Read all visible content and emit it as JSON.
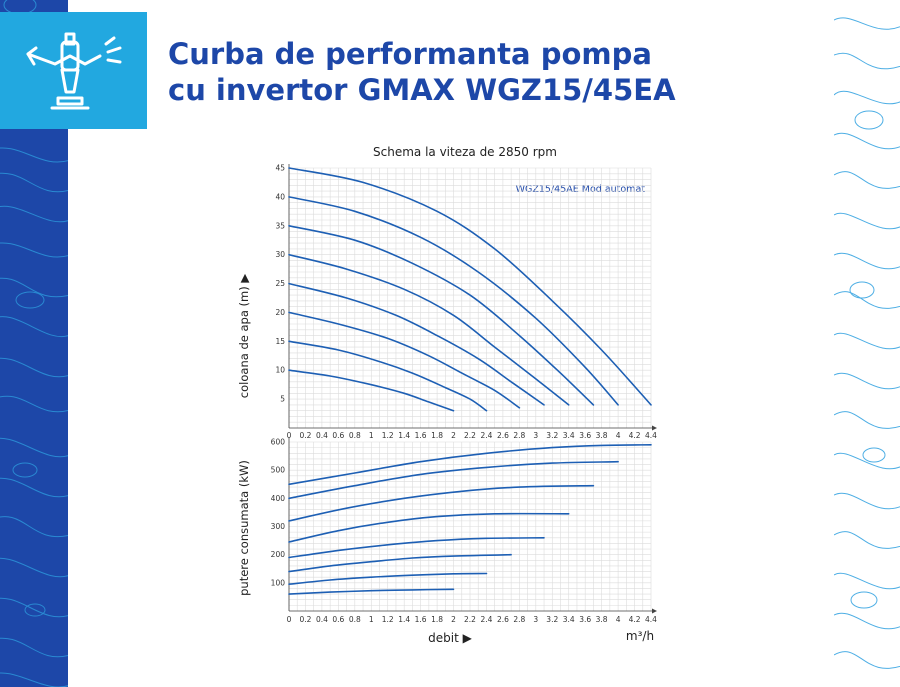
{
  "header": {
    "title_line1": "Curba de performanta pompa",
    "title_line2": "cu invertor GMAX WGZ15/45EA"
  },
  "icon": {
    "name": "sprinkler-icon"
  },
  "colors": {
    "brand": "#1d47a8",
    "accent": "#22a8e0",
    "curve": "#1d5fb4"
  },
  "chart_data": [
    {
      "type": "line",
      "title": "Schema la viteza de 2850 rpm",
      "legend": "WGZ15/45AE Mod automat",
      "xlabel": "",
      "ylabel": "coloana de apa (m) ▶",
      "x_ticks": [
        "0",
        "0.2",
        "0.4",
        "0.6",
        "0.8",
        "1",
        "1.2",
        "1.4",
        "1.6",
        "1.8",
        "2",
        "2.2",
        "2.4",
        "2.6",
        "2.8",
        "3",
        "3.2",
        "3.4",
        "3.6",
        "3.8",
        "4",
        "4.2",
        "4.4"
      ],
      "y_ticks": [
        "5",
        "10",
        "15",
        "20",
        "25",
        "30",
        "35",
        "40",
        "45"
      ],
      "xlim": [
        0,
        4.4
      ],
      "ylim": [
        0,
        45
      ],
      "grid": true,
      "series": [
        {
          "x": [
            0,
            0.9,
            1.8,
            2.5,
            3.2,
            3.8,
            4.4
          ],
          "y": [
            45,
            42.5,
            37.5,
            31,
            22,
            13.5,
            4
          ]
        },
        {
          "x": [
            0,
            0.8,
            1.6,
            2.3,
            3.0,
            3.6,
            4.0
          ],
          "y": [
            40,
            37.5,
            33,
            27,
            19,
            10.5,
            4
          ]
        },
        {
          "x": [
            0,
            0.8,
            1.5,
            2.2,
            2.8,
            3.3,
            3.7
          ],
          "y": [
            35,
            32.5,
            28.5,
            23,
            16,
            9.5,
            4
          ]
        },
        {
          "x": [
            0,
            0.7,
            1.4,
            2.0,
            2.5,
            3.0,
            3.4
          ],
          "y": [
            30,
            27.5,
            24,
            19.5,
            14,
            8.5,
            4
          ]
        },
        {
          "x": [
            0,
            0.7,
            1.3,
            1.8,
            2.3,
            2.7,
            3.1
          ],
          "y": [
            25,
            22.5,
            19.5,
            16,
            12,
            8,
            4
          ]
        },
        {
          "x": [
            0,
            0.6,
            1.2,
            1.7,
            2.1,
            2.5,
            2.8
          ],
          "y": [
            20,
            18,
            15.5,
            12.5,
            9.5,
            6.5,
            3.5
          ]
        },
        {
          "x": [
            0,
            0.6,
            1.1,
            1.5,
            1.9,
            2.2,
            2.4
          ],
          "y": [
            15,
            13.5,
            11.5,
            9.5,
            7,
            5,
            3
          ]
        },
        {
          "x": [
            0,
            0.5,
            1.0,
            1.4,
            1.7,
            2.0
          ],
          "y": [
            10,
            9,
            7.5,
            6,
            4.5,
            3
          ]
        }
      ]
    },
    {
      "type": "line",
      "title": "",
      "xlabel": "debit ▶",
      "xunit": "m³/h",
      "ylabel": "putere consumata (kW)",
      "x_ticks": [
        "0",
        "0.2",
        "0.4",
        "0.6",
        "0.8",
        "1",
        "1.2",
        "1.4",
        "1.6",
        "1.8",
        "2",
        "2.2",
        "2.4",
        "2.6",
        "2.8",
        "3",
        "3.2",
        "3.4",
        "3.6",
        "3.8",
        "4",
        "4.2",
        "4.4"
      ],
      "y_ticks": [
        "100",
        "200",
        "300",
        "400",
        "500",
        "600"
      ],
      "xlim": [
        0,
        4.4
      ],
      "ylim": [
        0,
        600
      ],
      "grid": true,
      "series": [
        {
          "x": [
            0,
            0.8,
            1.6,
            2.4,
            3.2,
            3.8,
            4.4
          ],
          "y": [
            450,
            490,
            530,
            560,
            580,
            588,
            590
          ]
        },
        {
          "x": [
            0,
            0.8,
            1.6,
            2.4,
            3.2,
            4.0
          ],
          "y": [
            400,
            445,
            485,
            510,
            525,
            530
          ]
        },
        {
          "x": [
            0,
            0.7,
            1.4,
            2.1,
            2.8,
            3.7
          ],
          "y": [
            320,
            365,
            400,
            425,
            440,
            445
          ]
        },
        {
          "x": [
            0,
            0.6,
            1.2,
            1.8,
            2.5,
            3.4
          ],
          "y": [
            245,
            285,
            315,
            335,
            345,
            345
          ]
        },
        {
          "x": [
            0,
            0.6,
            1.2,
            1.8,
            2.4,
            3.1
          ],
          "y": [
            190,
            215,
            235,
            250,
            258,
            260
          ]
        },
        {
          "x": [
            0,
            0.5,
            1.0,
            1.5,
            2.0,
            2.7
          ],
          "y": [
            140,
            160,
            175,
            188,
            195,
            200
          ]
        },
        {
          "x": [
            0,
            0.5,
            1.0,
            1.5,
            2.0,
            2.4
          ],
          "y": [
            95,
            110,
            120,
            127,
            132,
            133
          ]
        },
        {
          "x": [
            0,
            0.5,
            1.0,
            1.5,
            2.0
          ],
          "y": [
            60,
            67,
            72,
            75,
            77
          ]
        }
      ]
    }
  ]
}
